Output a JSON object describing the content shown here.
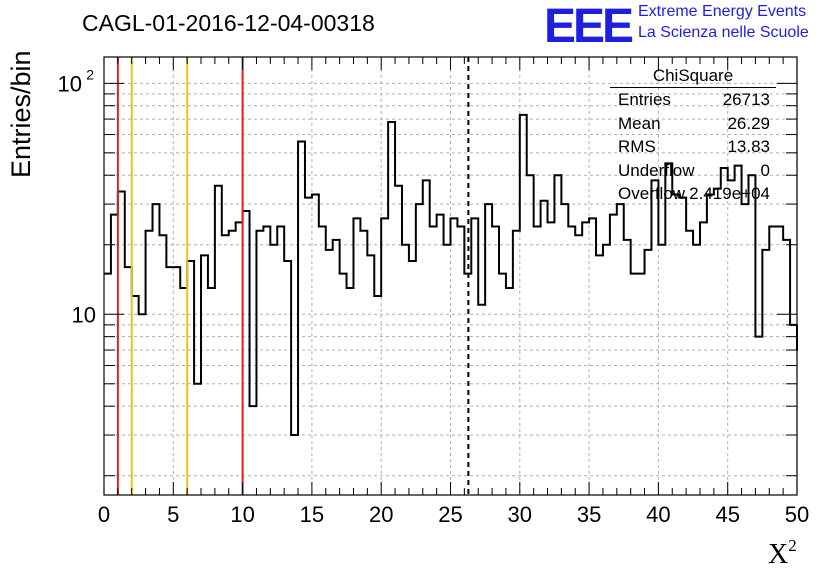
{
  "title": "CAGL-01-2016-12-04-00318",
  "logo": {
    "mark": "EEE",
    "line1": "Extreme Energy Events",
    "line2": "La Scienza nelle Scuole",
    "color": "#1f1fe0"
  },
  "stats_box": {
    "title": "ChiSquare",
    "rows": [
      {
        "key": "Entries",
        "value": "26713"
      },
      {
        "key": "Mean",
        "value": "26.29"
      },
      {
        "key": "RMS",
        "value": "13.83"
      },
      {
        "key": "Underflow",
        "value": "0"
      },
      {
        "key": "Overflow",
        "value": "2.419e+04"
      }
    ]
  },
  "chart_data": {
    "type": "histogram",
    "title": "CAGL-01-2016-12-04-00318",
    "xlabel": "X",
    "xlabel_sup": "2",
    "ylabel": "Entries/bin",
    "xlim": [
      0,
      50
    ],
    "ylim": [
      1.65,
      130
    ],
    "yscale": "log",
    "grid": true,
    "x_ticks": [
      "0",
      "5",
      "10",
      "15",
      "20",
      "25",
      "30",
      "35",
      "40",
      "45",
      "50"
    ],
    "y_tick_labels": [
      "10",
      "10"
    ],
    "y_tick_exponent": "2",
    "bin_width": 0.5,
    "values": [
      15,
      27,
      34,
      16,
      12,
      10,
      23,
      30,
      22,
      16,
      16,
      13,
      17,
      5,
      18,
      13,
      36,
      22,
      23,
      25,
      28,
      4,
      23,
      24,
      20,
      24,
      17,
      3,
      56,
      32,
      33,
      24,
      19,
      21,
      15,
      13,
      26,
      23,
      18,
      12,
      26,
      68,
      36,
      20,
      17,
      30,
      38,
      24,
      27,
      20,
      26,
      24,
      15,
      26,
      11,
      30,
      24,
      15,
      13,
      23,
      73,
      40,
      24,
      31,
      25,
      40,
      30,
      24,
      22,
      25,
      26,
      18,
      20,
      27,
      30,
      21,
      15,
      15,
      19,
      38,
      20,
      45,
      33,
      32,
      23,
      20,
      25,
      33,
      35,
      43,
      38,
      44,
      30,
      40,
      8,
      19,
      24,
      24,
      21,
      9
    ],
    "reference_lines": [
      {
        "x": 1,
        "color": "#dd2020",
        "style": "solid"
      },
      {
        "x": 2,
        "color": "#f0c020",
        "style": "solid"
      },
      {
        "x": 6,
        "color": "#f0c020",
        "style": "solid"
      },
      {
        "x": 10,
        "color": "#dd2020",
        "style": "solid"
      },
      {
        "x": 26.29,
        "color": "#000000",
        "style": "dashed"
      }
    ]
  }
}
